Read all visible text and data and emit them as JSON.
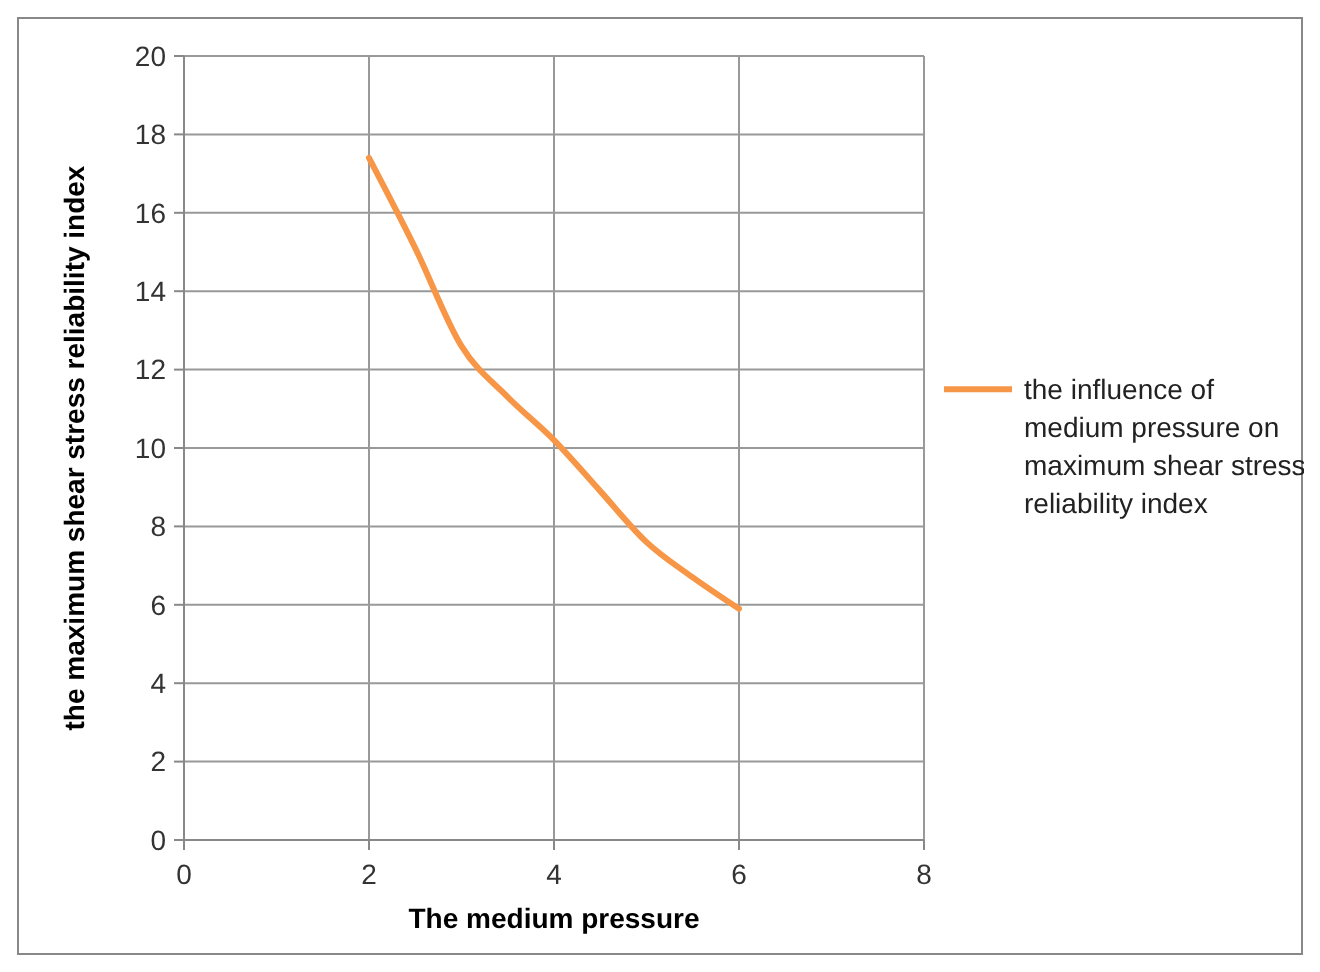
{
  "chart_data": {
    "type": "line",
    "xlabel": "The medium pressure",
    "ylabel": "the maximum shear stress reliability index",
    "x": [
      2,
      2.5,
      3,
      3.5,
      4,
      4.5,
      5,
      5.5,
      6
    ],
    "series": [
      {
        "name": "the influence of medium pressure on maximum shear stress reliability index",
        "color": "#f79646",
        "values": [
          17.4,
          15.1,
          12.6,
          11.3,
          10.2,
          8.9,
          7.6,
          6.7,
          5.9
        ]
      }
    ],
    "xlim": [
      0,
      8
    ],
    "xticks": [
      0,
      2,
      4,
      6,
      8
    ],
    "ylim": [
      0,
      20
    ],
    "yticks": [
      0,
      2,
      4,
      6,
      8,
      10,
      12,
      14,
      16,
      18,
      20
    ],
    "grid": true,
    "legend": "right",
    "marker": "none",
    "line_style": "solid"
  }
}
